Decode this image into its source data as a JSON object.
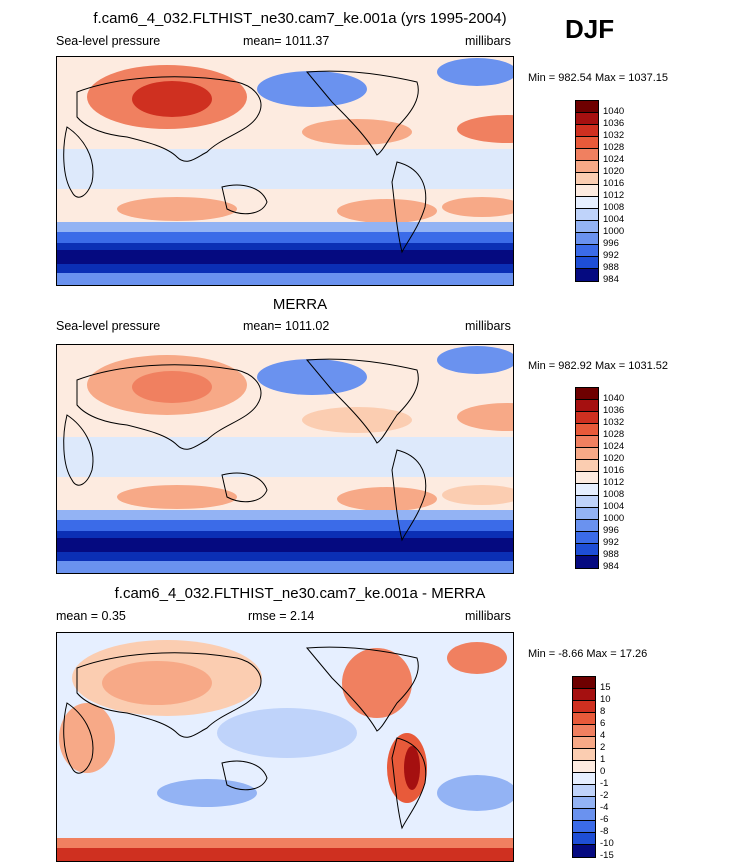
{
  "season": "DJF",
  "colors": {
    "scale": [
      "#050a80",
      "#0b2fb5",
      "#1e4ed6",
      "#3b6be8",
      "#6a92ef",
      "#93b3f4",
      "#bfd3fa",
      "#e6efff",
      "#fdebe0",
      "#fbcdb1",
      "#f7a987",
      "#f08060",
      "#e85a3a",
      "#cf3020",
      "#a51010",
      "#6e0000"
    ]
  },
  "chart_data": [
    {
      "type": "heatmap",
      "title": "f.cam6_4_032.FLTHIST_ne30.cam7_ke.001a (yrs 1995-2004)",
      "left_label": "Sea-level pressure",
      "center_label": "mean= 1011.37",
      "right_label": "millibars",
      "min_max": "Min = 982.54 Max = 1037.15",
      "levels": [
        "1040",
        "1036",
        "1032",
        "1028",
        "1024",
        "1020",
        "1016",
        "1012",
        "1008",
        "1004",
        "1000",
        "996",
        "992",
        "988",
        "984"
      ]
    },
    {
      "type": "heatmap",
      "title": "MERRA",
      "left_label": "Sea-level pressure",
      "center_label": "mean= 1011.02",
      "right_label": "millibars",
      "min_max": "Min = 982.92 Max = 1031.52",
      "levels": [
        "1040",
        "1036",
        "1032",
        "1028",
        "1024",
        "1020",
        "1016",
        "1012",
        "1008",
        "1004",
        "1000",
        "996",
        "992",
        "988",
        "984"
      ]
    },
    {
      "type": "heatmap",
      "title": "f.cam6_4_032.FLTHIST_ne30.cam7_ke.001a - MERRA",
      "left_label": "mean =   0.35",
      "center_label": "rmse =   2.14",
      "right_label": "millibars",
      "min_max": "Min =  -8.66 Max =  17.26",
      "levels": [
        "15",
        "10",
        "8",
        "6",
        "4",
        "2",
        "1",
        "0",
        "-1",
        "-2",
        "-4",
        "-6",
        "-8",
        "-10",
        "-15"
      ]
    }
  ]
}
